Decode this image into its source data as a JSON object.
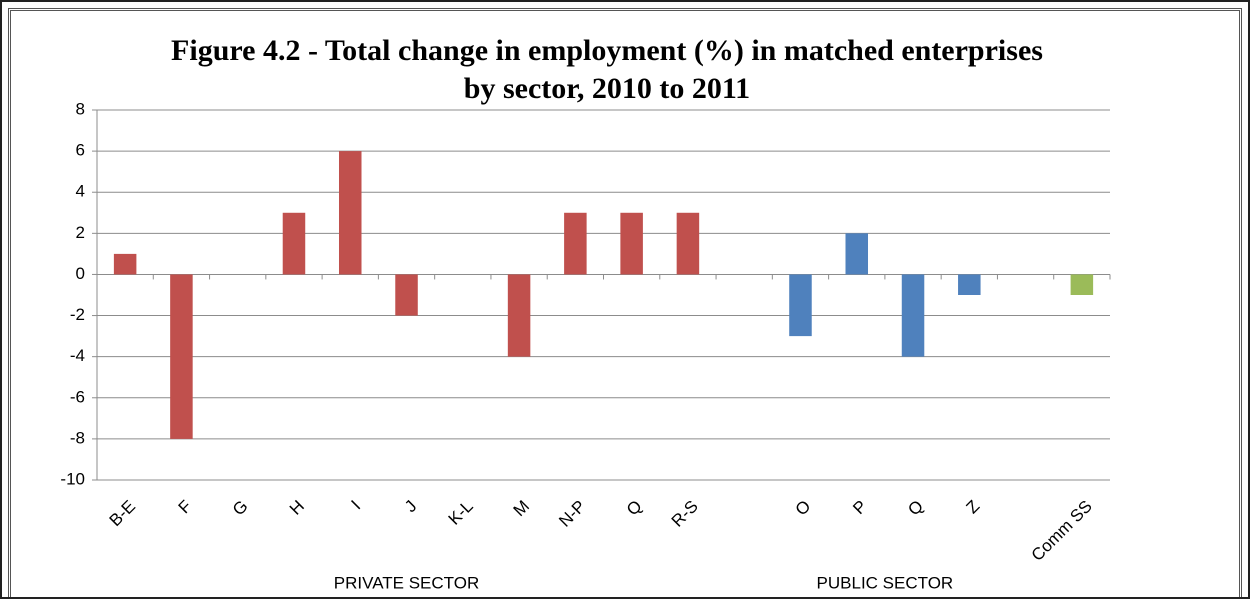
{
  "chart_data": {
    "type": "bar",
    "title": "Figure 4.2 - Total change in employment (%) in matched enterprises by sector, 2010 to 2011",
    "categories": [
      "B-E",
      "F",
      "G",
      "H",
      "I",
      "J",
      "K-L",
      "M",
      "N-P",
      "Q",
      "R-S",
      null,
      "O",
      "P",
      "Q",
      "Z",
      null,
      "Comm SS"
    ],
    "series": [
      {
        "name": "PRIVATE SECTOR",
        "color": "#c0504d",
        "values": [
          1,
          -8,
          0,
          3,
          6,
          -2,
          0,
          -4,
          3,
          3,
          3,
          null,
          null,
          null,
          null,
          null,
          null,
          null
        ]
      },
      {
        "name": "PUBLIC SECTOR",
        "color": "#4f81bd",
        "values": [
          null,
          null,
          null,
          null,
          null,
          null,
          null,
          null,
          null,
          null,
          null,
          null,
          -3,
          2,
          -4,
          -1,
          null,
          null
        ]
      },
      {
        "color": "#9bbb59",
        "values": [
          null,
          null,
          null,
          null,
          null,
          null,
          null,
          null,
          null,
          null,
          null,
          null,
          null,
          null,
          null,
          null,
          null,
          -1
        ]
      }
    ],
    "ylim": [
      -10,
      8
    ],
    "yticks": [
      -10,
      -8,
      -6,
      -4,
      -2,
      0,
      2,
      4,
      6,
      8
    ],
    "grid": true
  }
}
